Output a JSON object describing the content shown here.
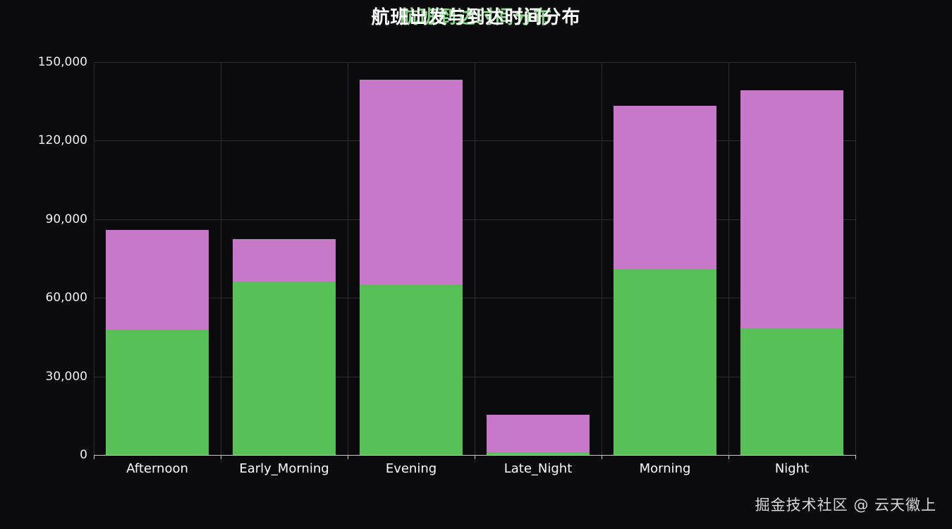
{
  "title": {
    "main": "航班出发与到达时间分布",
    "ghost": "航班到达时间分布"
  },
  "watermark": "掘金技术社区 @ 云天徽上",
  "colors": {
    "background": "#0b0b0d",
    "grid": "#2d2d2d",
    "axis": "#c9c9c9",
    "title_ghost": "#86d986",
    "green": "#57c157",
    "purple": "#c878c8"
  },
  "chart_data": {
    "type": "bar",
    "stacked": true,
    "title": "航班出发与到达时间分布",
    "categories": [
      "Afternoon",
      "Early_Morning",
      "Evening",
      "Late_Night",
      "Morning",
      "Night"
    ],
    "series": [
      {
        "name": "green-bottom",
        "color": "#57c157",
        "values": [
          47800,
          66300,
          64800,
          1100,
          71100,
          48400
        ]
      },
      {
        "name": "purple-top",
        "color": "#c878c8",
        "values": [
          38200,
          16000,
          78400,
          14200,
          62200,
          90800
        ]
      }
    ],
    "totals": [
      86000,
      82300,
      143200,
      15300,
      133300,
      139200
    ],
    "xlabel": "",
    "ylabel": "",
    "ylim": [
      0,
      150000
    ],
    "yticks": [
      0,
      30000,
      60000,
      90000,
      120000,
      150000
    ],
    "ytick_labels": [
      "0",
      "30,000",
      "60,000",
      "90,000",
      "120,000",
      "150,000"
    ],
    "grid": true,
    "legend": "none",
    "background": "dark"
  }
}
